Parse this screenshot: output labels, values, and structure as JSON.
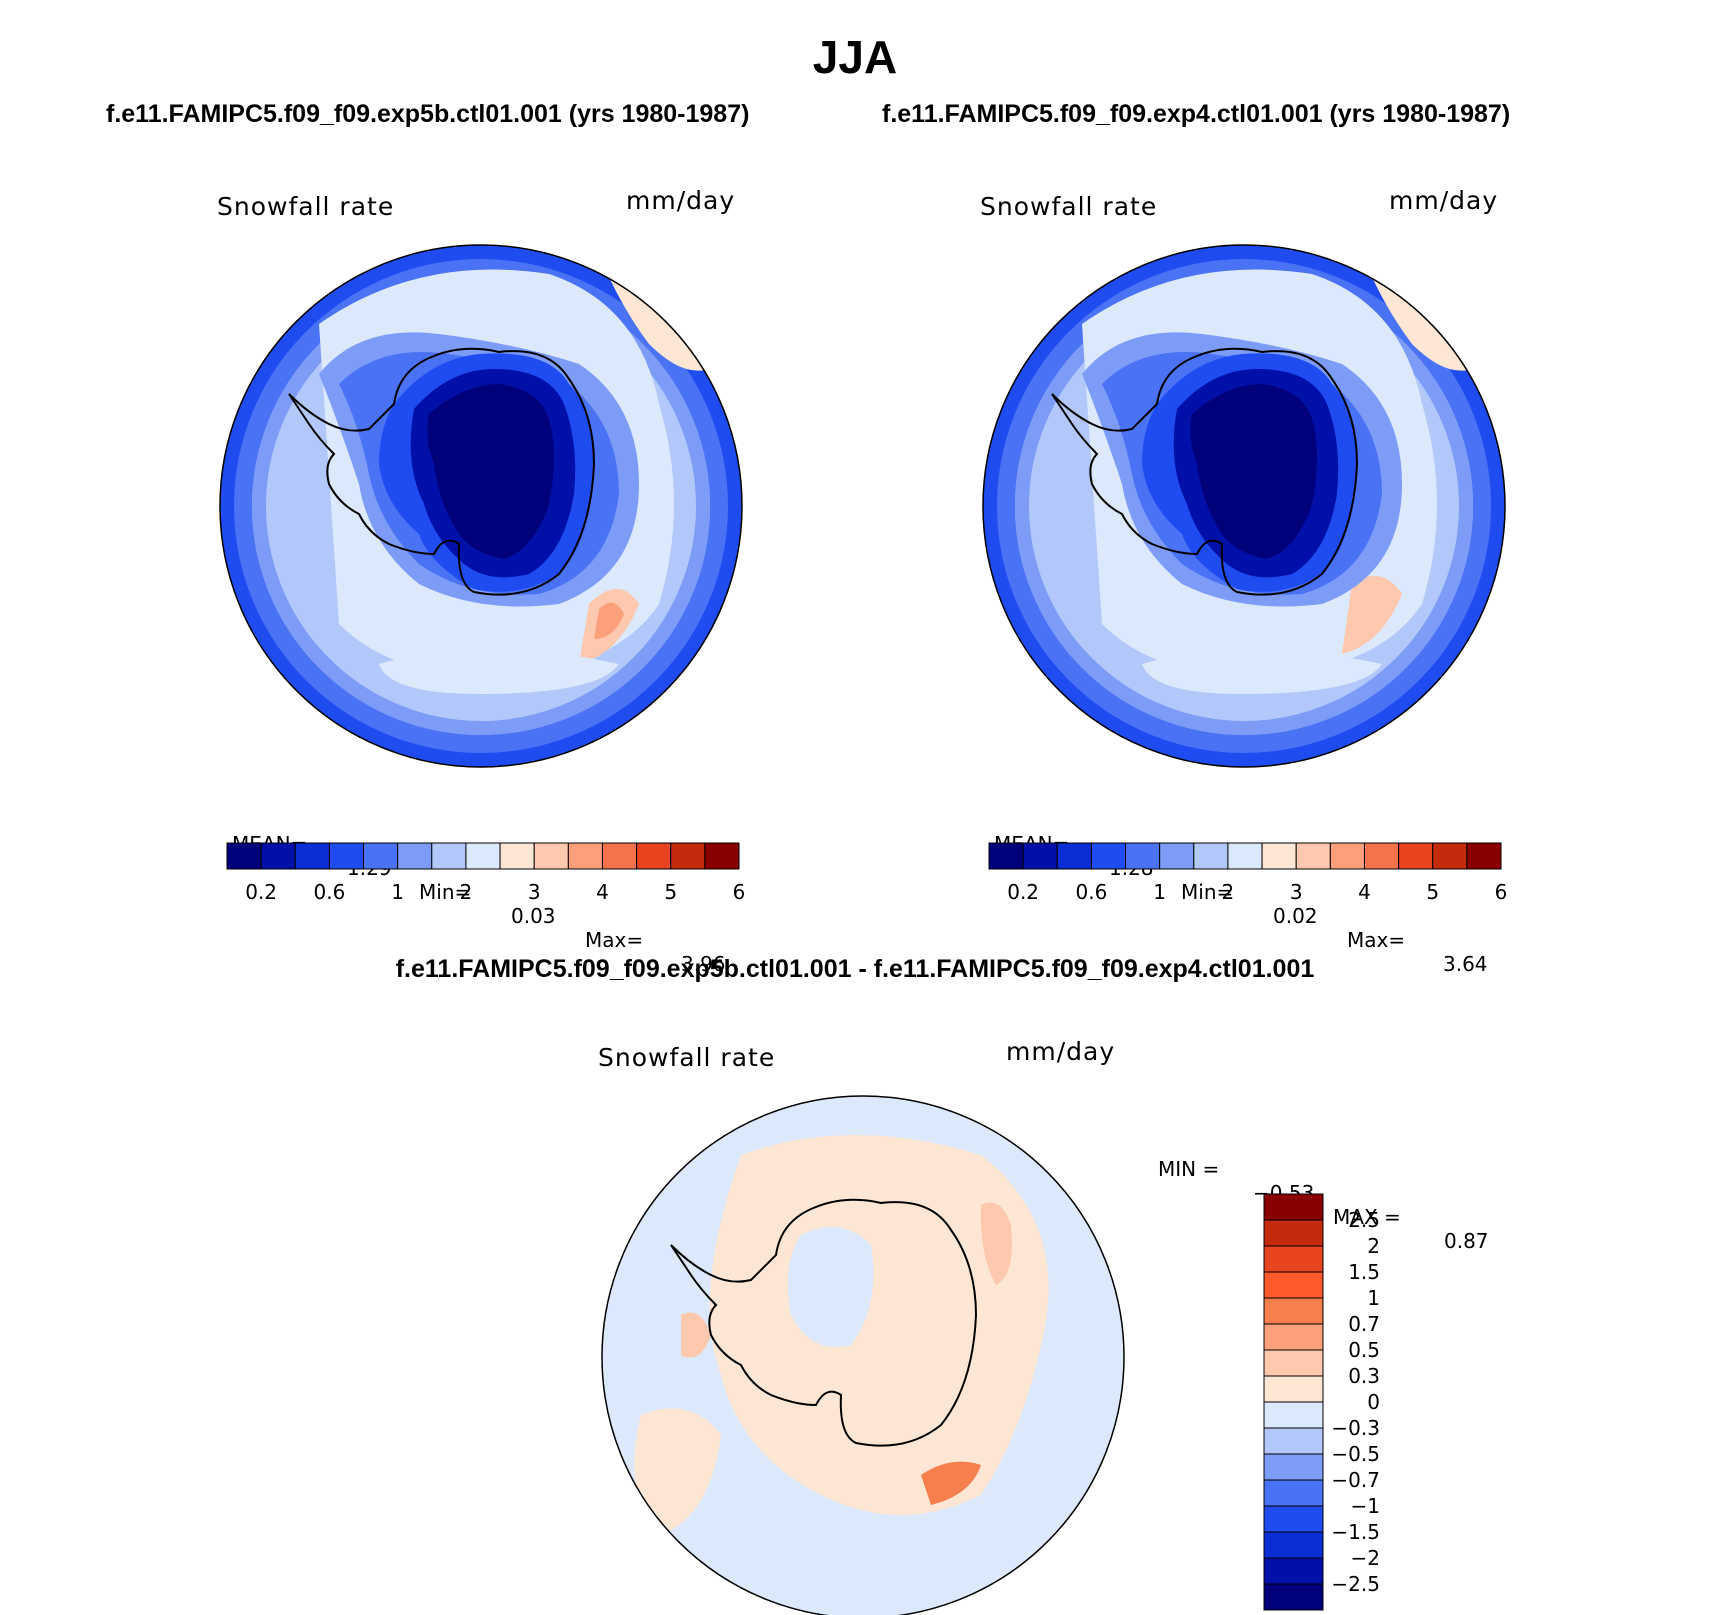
{
  "page": {
    "title": "JJA",
    "case_titles": {
      "left": "f.e11.FAMIPC5.f09_f09.exp5b.ctl01.001 (yrs 1980-1987)",
      "right": "f.e11.FAMIPC5.f09_f09.exp4.ctl01.001 (yrs 1980-1987)"
    },
    "diff_title": "f.e11.FAMIPC5.f09_f09.exp5b.ctl01.001 - f.e11.FAMIPC5.f09_f09.exp4.ctl01.001"
  },
  "panels": {
    "left": {
      "variable": "Snowfall rate",
      "units": "mm/day",
      "stats": {
        "mean_label": "MEAN=",
        "mean": "1.29",
        "min_label": "Min=",
        "min": "0.03",
        "max_label": "Max=",
        "max": "3.96"
      }
    },
    "right": {
      "variable": "Snowfall rate",
      "units": "mm/day",
      "stats": {
        "mean_label": "MEAN=",
        "mean": "1.28",
        "min_label": "Min=",
        "min": "0.02",
        "max_label": "Max=",
        "max": "3.64"
      }
    },
    "diff": {
      "variable": "Snowfall rate",
      "units": "mm/day",
      "stats": {
        "min_label": "MIN =",
        "min": "−0.53",
        "max_label": "MAX =",
        "max": "0.87"
      }
    }
  },
  "colorbars": {
    "field": {
      "colors": [
        "#00007a",
        "#0010a8",
        "#0a2ed6",
        "#1f4cf0",
        "#4a72f5",
        "#7d9cf7",
        "#b3c8fa",
        "#dce8fb",
        "#fde6d4",
        "#fdc8ae",
        "#fba07a",
        "#f5734a",
        "#e84420",
        "#c42a0c",
        "#8a0000"
      ],
      "tick_labels": [
        "0.2",
        "0.6",
        "1",
        "2",
        "3",
        "4",
        "5",
        "6"
      ]
    },
    "diff": {
      "colors_top_to_bottom": [
        "#8a0000",
        "#c42a0c",
        "#e84420",
        "#fb5a2c",
        "#f5804e",
        "#fba07a",
        "#fdc8ae",
        "#fde6d4",
        "#dce8fb",
        "#b3c8fa",
        "#7d9cf7",
        "#4a72f5",
        "#1f4cf0",
        "#0a2ed6",
        "#0010a8",
        "#00007a"
      ],
      "tick_labels_top_to_bottom": [
        "2.5",
        "2",
        "1.5",
        "1",
        "0.7",
        "0.5",
        "0.3",
        "0",
        "−0.3",
        "−0.5",
        "−0.7",
        "−1",
        "−1.5",
        "−2",
        "−2.5"
      ]
    }
  },
  "map": {
    "projection": "south polar stereographic",
    "coastline_color": "#000000",
    "ocean_base_left": "#b3c8fa",
    "ocean_base_right": "#b3c8fa",
    "diff_base": "#dce8fb"
  }
}
